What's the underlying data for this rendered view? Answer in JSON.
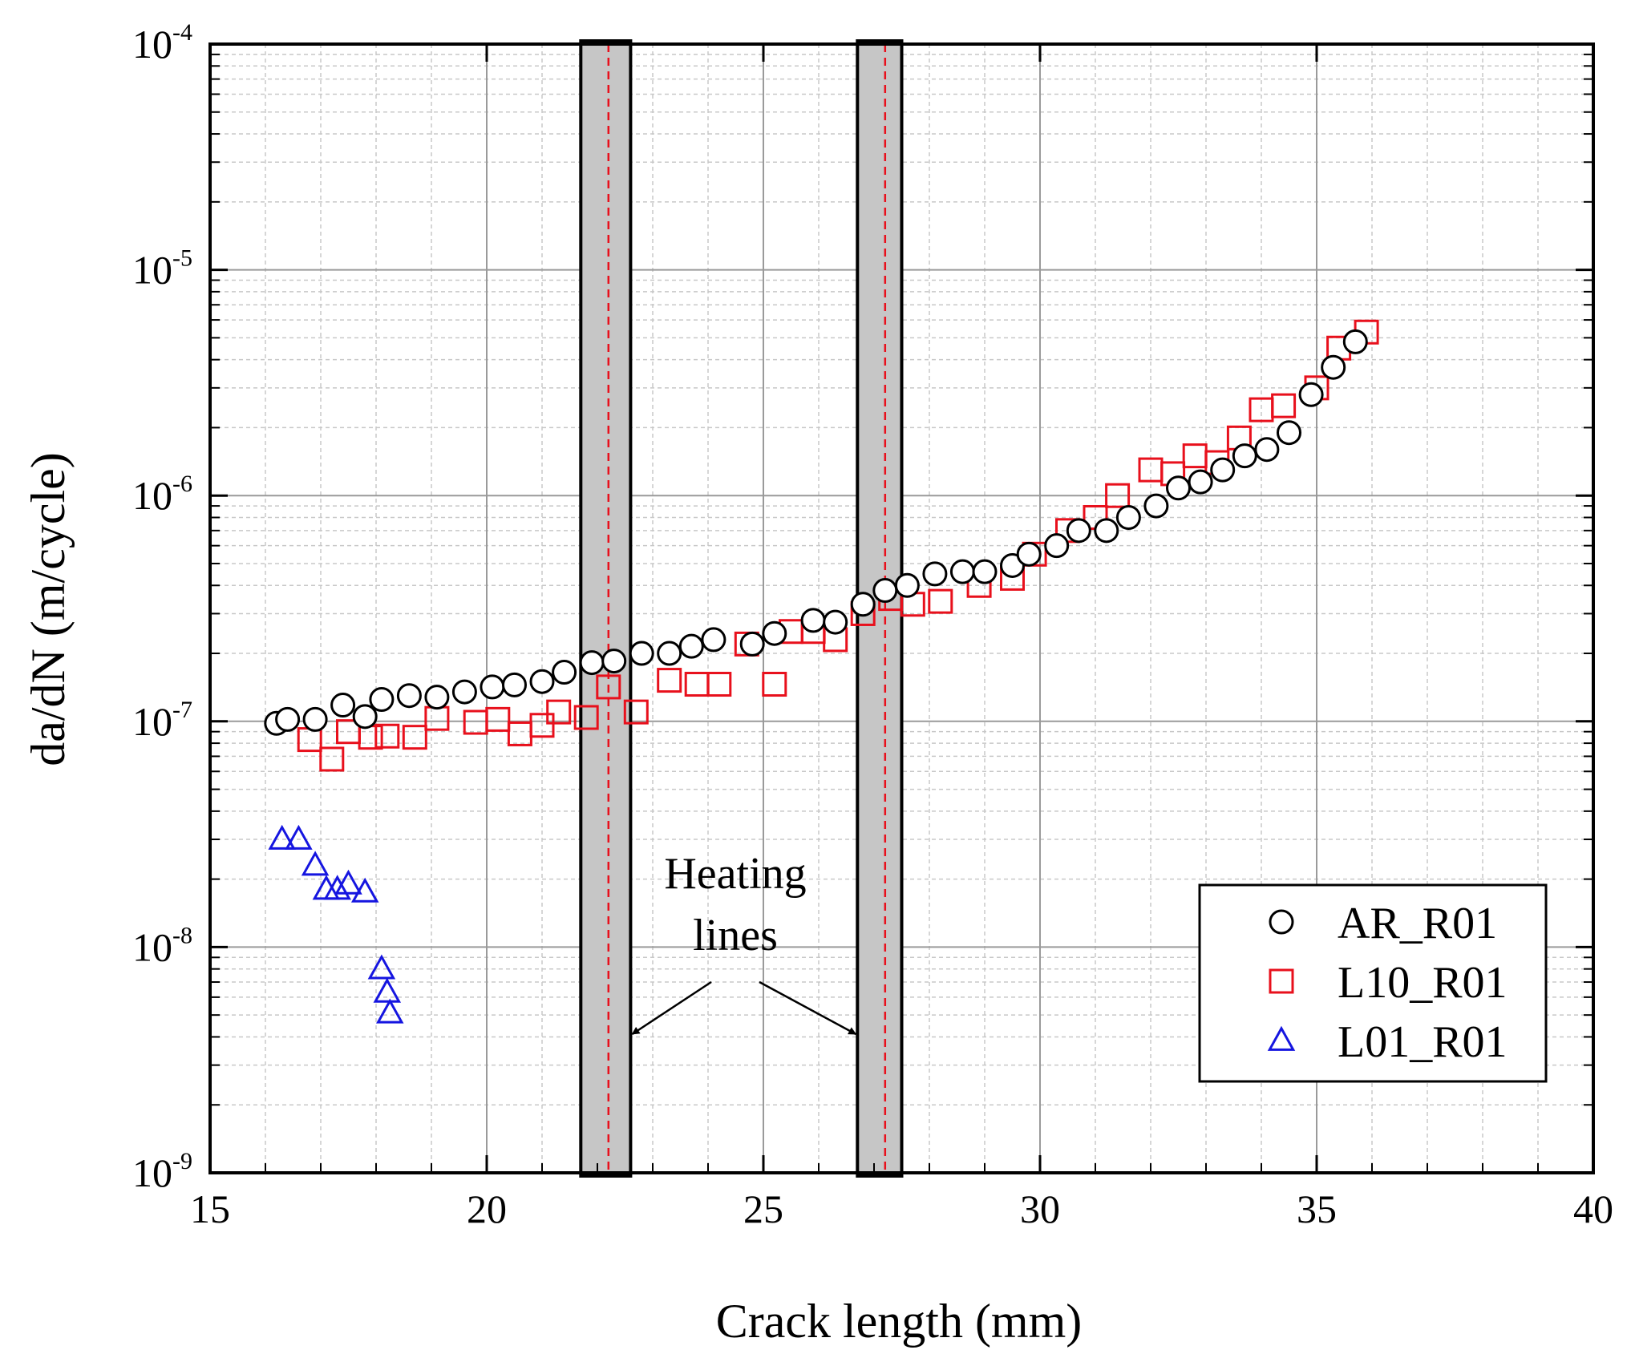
{
  "chart_data": {
    "type": "scatter",
    "title": "",
    "xlabel": "Crack length (mm)",
    "ylabel": "da/dN (m/cycle)",
    "xlim": [
      15,
      40
    ],
    "ylim": [
      1e-09,
      0.0001
    ],
    "yscale": "log",
    "grid": true,
    "legend_position": "bottom-right",
    "x_ticks": [
      {
        "value": 15,
        "label": "15"
      },
      {
        "value": 20,
        "label": "20"
      },
      {
        "value": 25,
        "label": "25"
      },
      {
        "value": 30,
        "label": "30"
      },
      {
        "value": 35,
        "label": "35"
      },
      {
        "value": 40,
        "label": "40"
      }
    ],
    "y_ticks": [
      {
        "value": 1e-09,
        "base": "10",
        "exp": "-9"
      },
      {
        "value": 1e-08,
        "base": "10",
        "exp": "-8"
      },
      {
        "value": 1e-07,
        "base": "10",
        "exp": "-7"
      },
      {
        "value": 1e-06,
        "base": "10",
        "exp": "-6"
      },
      {
        "value": 1e-05,
        "base": "10",
        "exp": "-5"
      },
      {
        "value": 0.0001,
        "base": "10",
        "exp": "-4"
      }
    ],
    "heating_lines": [
      {
        "center": 22.2,
        "band": [
          21.7,
          22.6
        ]
      },
      {
        "center": 27.2,
        "band": [
          26.7,
          27.5
        ]
      }
    ],
    "annotation": {
      "lines": [
        "Heating",
        "lines"
      ]
    },
    "series": [
      {
        "name": "AR_R01",
        "marker": "circle",
        "color": "#000000",
        "x": [
          16.2,
          16.4,
          16.9,
          17.4,
          17.8,
          18.1,
          18.6,
          19.1,
          19.6,
          20.1,
          20.5,
          21.0,
          21.4,
          21.9,
          22.3,
          22.8,
          23.3,
          23.7,
          24.1,
          24.8,
          25.2,
          25.9,
          26.3,
          26.8,
          27.2,
          27.6,
          28.1,
          28.6,
          29.0,
          29.5,
          29.8,
          30.3,
          30.7,
          31.2,
          31.6,
          32.1,
          32.5,
          32.9,
          33.3,
          33.7,
          34.1,
          34.5,
          34.9,
          35.3,
          35.7
        ],
        "y": [
          9.8e-08,
          1.02e-07,
          1.02e-07,
          1.18e-07,
          1.05e-07,
          1.25e-07,
          1.3e-07,
          1.28e-07,
          1.35e-07,
          1.42e-07,
          1.45e-07,
          1.5e-07,
          1.65e-07,
          1.82e-07,
          1.85e-07,
          2e-07,
          2e-07,
          2.15e-07,
          2.3e-07,
          2.2e-07,
          2.45e-07,
          2.8e-07,
          2.75e-07,
          3.3e-07,
          3.8e-07,
          4e-07,
          4.5e-07,
          4.6e-07,
          4.6e-07,
          4.9e-07,
          5.5e-07,
          6e-07,
          7e-07,
          7e-07,
          8e-07,
          9e-07,
          1.08e-06,
          1.15e-06,
          1.3e-06,
          1.5e-06,
          1.6e-06,
          1.9e-06,
          2.8e-06,
          3.7e-06,
          4.8e-06
        ]
      },
      {
        "name": "L10_R01",
        "marker": "square",
        "color": "#e8101c",
        "x": [
          16.8,
          17.2,
          17.5,
          17.9,
          18.2,
          18.7,
          19.1,
          19.8,
          20.2,
          20.6,
          21.0,
          21.3,
          21.8,
          22.2,
          22.7,
          23.3,
          23.8,
          24.2,
          24.7,
          25.2,
          25.5,
          25.9,
          26.3,
          26.8,
          27.3,
          27.7,
          28.2,
          28.9,
          29.5,
          29.9,
          30.5,
          31.0,
          31.4,
          32.0,
          32.4,
          32.8,
          33.2,
          33.6,
          34.0,
          34.4,
          35.0,
          35.4,
          35.9
        ],
        "y": [
          8.3e-08,
          6.8e-08,
          9e-08,
          8.5e-08,
          8.6e-08,
          8.5e-08,
          1.03e-07,
          9.9e-08,
          1.02e-07,
          8.8e-08,
          9.6e-08,
          1.1e-07,
          1.04e-07,
          1.42e-07,
          1.1e-07,
          1.52e-07,
          1.46e-07,
          1.46e-07,
          2.2e-07,
          1.46e-07,
          2.5e-07,
          2.5e-07,
          2.3e-07,
          3e-07,
          3.5e-07,
          3.3e-07,
          3.4e-07,
          4e-07,
          4.3e-07,
          5.5e-07,
          7e-07,
          8e-07,
          1e-06,
          1.3e-06,
          1.25e-06,
          1.5e-06,
          1.4e-06,
          1.8e-06,
          2.4e-06,
          2.5e-06,
          3e-06,
          4.5e-06,
          5.3e-06
        ]
      },
      {
        "name": "L01_R01",
        "marker": "triangle",
        "color": "#1515e0",
        "x": [
          16.3,
          16.6,
          16.9,
          17.1,
          17.3,
          17.5,
          17.8,
          18.1,
          18.2,
          18.25
        ],
        "y": [
          3e-08,
          3e-08,
          2.3e-08,
          1.8e-08,
          1.8e-08,
          1.9e-08,
          1.75e-08,
          8e-09,
          6.3e-09,
          5.1e-09
        ]
      }
    ]
  }
}
